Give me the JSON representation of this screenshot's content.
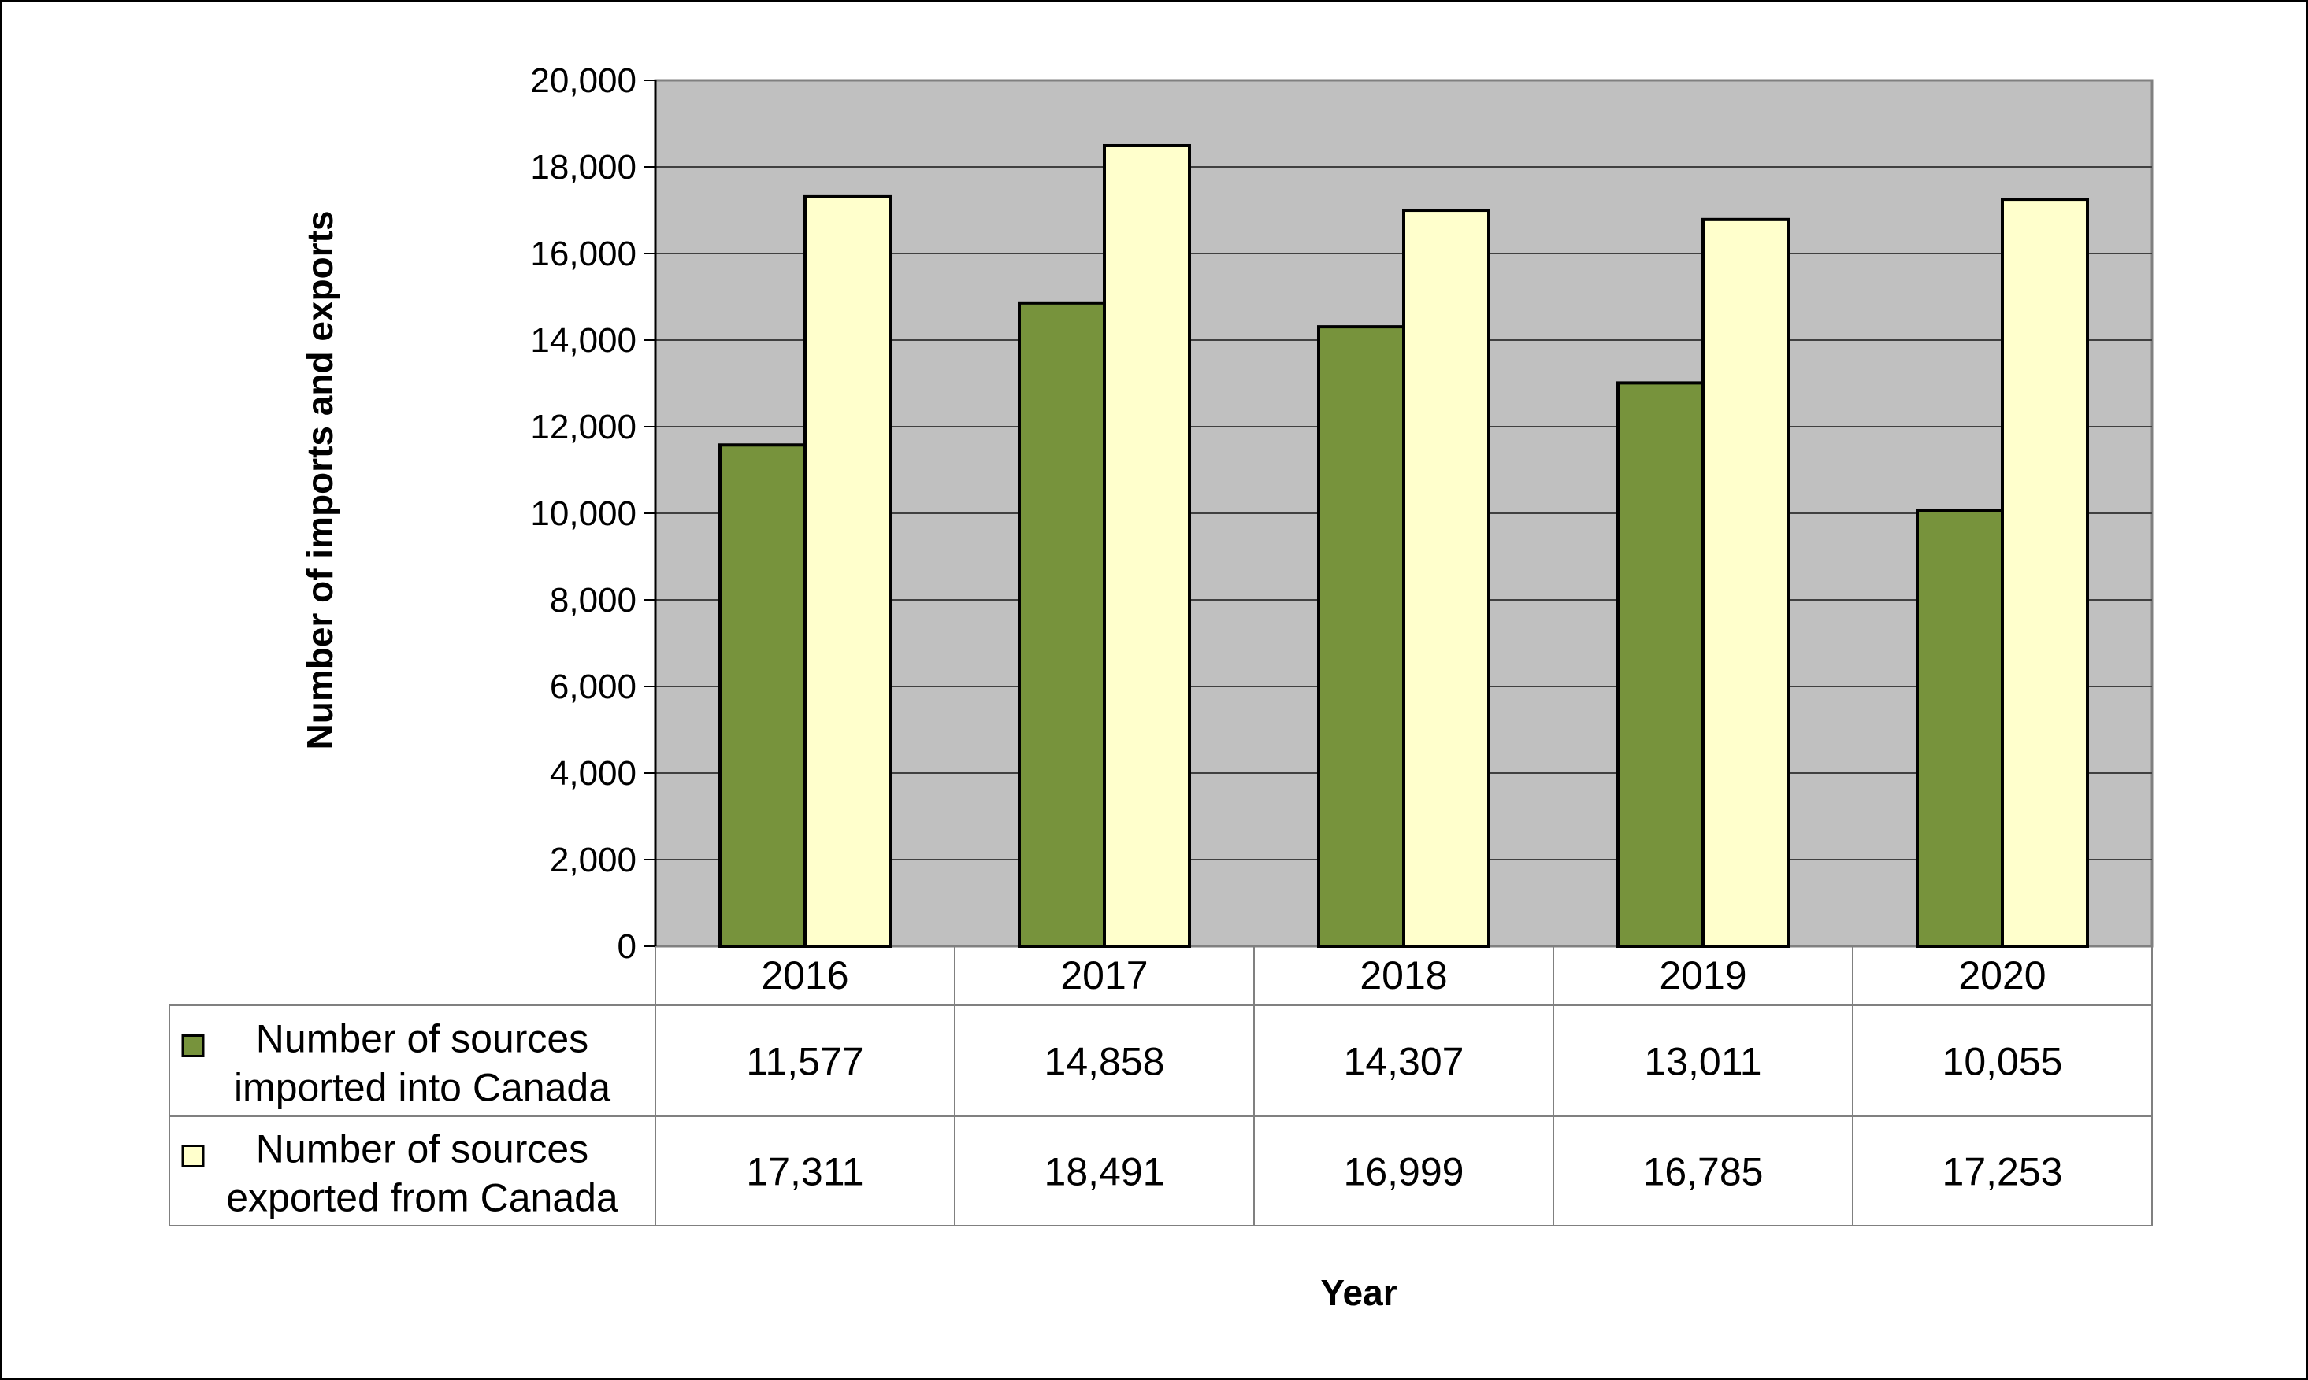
{
  "chart_data": {
    "type": "bar",
    "title": "",
    "xlabel": "Year",
    "ylabel": "Number of imports and exports",
    "categories": [
      "2016",
      "2017",
      "2018",
      "2019",
      "2020"
    ],
    "ylim": [
      0,
      20000
    ],
    "yticks": [
      0,
      2000,
      4000,
      6000,
      8000,
      10000,
      12000,
      14000,
      16000,
      18000,
      20000
    ],
    "ytick_labels": [
      "0",
      "2,000",
      "4,000",
      "6,000",
      "8,000",
      "10,000",
      "12,000",
      "14,000",
      "16,000",
      "18,000",
      "20,000"
    ],
    "grid": true,
    "legend": "data table below chart",
    "plot_background": "#c0c0c0",
    "series": [
      {
        "name": "Number of sources imported into Canada",
        "label_lines": [
          "Number of sources",
          "imported into Canada"
        ],
        "color": "#77933c",
        "values": [
          11577,
          14858,
          14307,
          13011,
          10055
        ],
        "value_labels": [
          "11,577",
          "14,858",
          "14,307",
          "13,011",
          "10,055"
        ]
      },
      {
        "name": "Number of sources exported from Canada",
        "label_lines": [
          "Number of sources",
          "exported from Canada"
        ],
        "color": "#ffffcc",
        "values": [
          17311,
          18491,
          16999,
          16785,
          17253
        ],
        "value_labels": [
          "17,311",
          "18,491",
          "16,999",
          "16,785",
          "17,253"
        ]
      }
    ]
  }
}
